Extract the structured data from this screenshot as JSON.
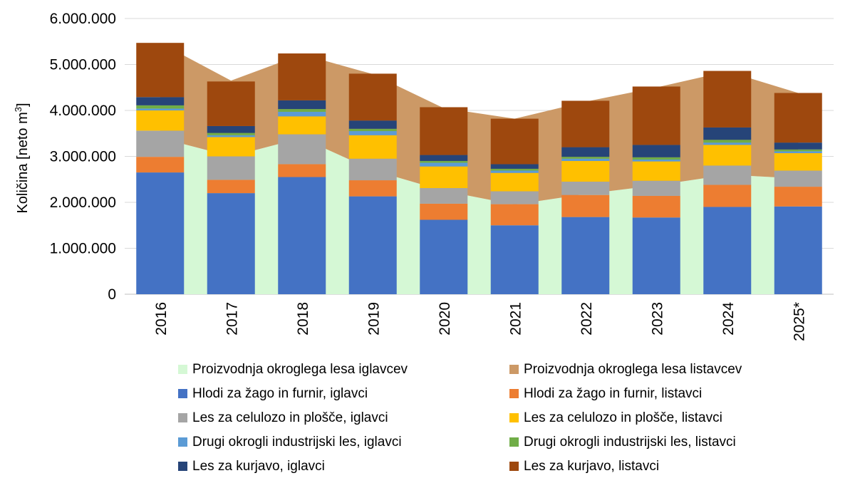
{
  "chart_data": {
    "type": "bar",
    "stacked": true,
    "ylabel": "Količina [neto m",
    "ylabel_sup": "3",
    "ylabel_end": "]",
    "ylim": [
      0,
      6000000
    ],
    "yticks": [
      "0",
      "1.000.000",
      "2.000.000",
      "3.000.000",
      "4.000.000",
      "5.000.000",
      "6.000.000"
    ],
    "grid": true,
    "legend_position": "bottom",
    "categories": [
      "2016",
      "2017",
      "2018",
      "2019",
      "2020",
      "2021",
      "2022",
      "2023",
      "2024",
      "2025*"
    ],
    "areas": [
      {
        "name": "Proizvodnja okroglega lesa iglavcev",
        "color": "#d5f8d5",
        "values": [
          3400000,
          3000000,
          3400000,
          2700000,
          2250000,
          1950000,
          2180000,
          2370000,
          2600000,
          2520000
        ]
      },
      {
        "name": "Proizvodnja okroglega lesa listavcev",
        "color": "#cc9966",
        "values": [
          2070000,
          1650000,
          1820000,
          2090000,
          1800000,
          1870000,
          2010000,
          2130000,
          2250000,
          1860000
        ]
      }
    ],
    "series": [
      {
        "name": "Hlodi za žago in furnir, iglavci",
        "color": "#4472c4",
        "values": [
          2650000,
          2200000,
          2550000,
          2130000,
          1620000,
          1500000,
          1680000,
          1670000,
          1900000,
          1910000
        ]
      },
      {
        "name": "Hlodi za žago in furnir, listavci",
        "color": "#ed7d31",
        "values": [
          340000,
          290000,
          280000,
          350000,
          350000,
          460000,
          480000,
          470000,
          480000,
          430000
        ]
      },
      {
        "name": "Les za celulozo in plošče, iglavci",
        "color": "#a5a5a5",
        "values": [
          570000,
          510000,
          650000,
          470000,
          340000,
          280000,
          290000,
          330000,
          420000,
          350000
        ]
      },
      {
        "name": "Les za celulozo in plošče, listavci",
        "color": "#ffc000",
        "values": [
          440000,
          420000,
          390000,
          510000,
          470000,
          400000,
          450000,
          420000,
          450000,
          380000
        ]
      },
      {
        "name": "Drugi okrogli industrijski les, iglavci",
        "color": "#5b9bd5",
        "values": [
          40000,
          40000,
          100000,
          90000,
          80000,
          50000,
          50000,
          40000,
          50000,
          40000
        ]
      },
      {
        "name": "Drugi okrogli industrijski les, listavci",
        "color": "#70ad47",
        "values": [
          70000,
          50000,
          60000,
          50000,
          40000,
          40000,
          40000,
          50000,
          60000,
          40000
        ]
      },
      {
        "name": "Les za kurjavo, iglavci",
        "color": "#264478",
        "values": [
          180000,
          150000,
          190000,
          180000,
          130000,
          100000,
          210000,
          270000,
          270000,
          150000
        ]
      },
      {
        "name": "Les za kurjavo, listavci",
        "color": "#9e480e",
        "values": [
          1180000,
          970000,
          1020000,
          1020000,
          1040000,
          990000,
          1010000,
          1270000,
          1230000,
          1080000
        ]
      }
    ],
    "legend_order": [
      "Proizvodnja okroglega lesa iglavcev",
      "Proizvodnja okroglega lesa listavcev",
      "Hlodi za žago in furnir, iglavci",
      "Hlodi za žago in furnir, listavci",
      "Les za celulozo in plošče, iglavci",
      "Les za celulozo in plošče, listavci",
      "Drugi okrogli industrijski les, iglavci",
      "Drugi okrogli industrijski les, listavci",
      "Les za kurjavo, iglavci",
      "Les za kurjavo, listavci"
    ]
  }
}
